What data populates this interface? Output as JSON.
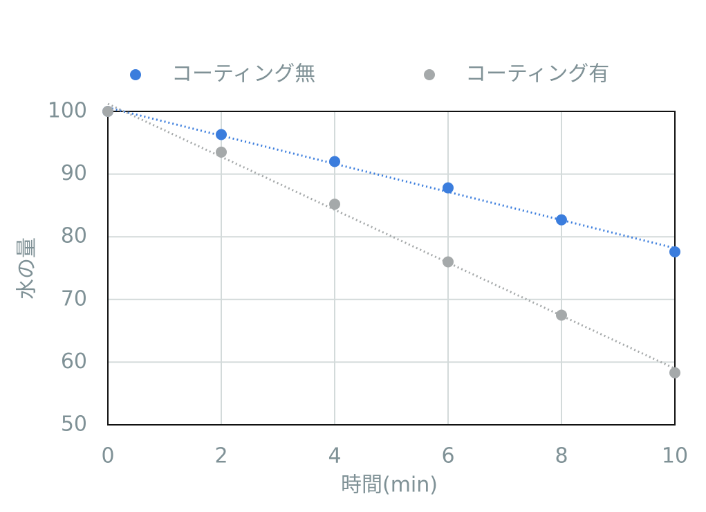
{
  "chart_data": {
    "type": "scatter",
    "x_label": "時間(min)",
    "y_label": "水の量",
    "x": [
      0,
      2,
      4,
      6,
      8,
      10
    ],
    "series": [
      {
        "name": "コーティング無",
        "color": "#3b7ddd",
        "values": [
          100,
          96.3,
          92,
          87.8,
          82.7,
          77.6
        ]
      },
      {
        "name": "コーティング有",
        "color": "#a5a9aa",
        "values": [
          100,
          93.5,
          85.2,
          76,
          67.5,
          58.3
        ]
      }
    ],
    "xlim": [
      0,
      10
    ],
    "xticks": [
      0,
      2,
      4,
      6,
      8,
      10
    ],
    "ylim": [
      50,
      100
    ],
    "yticks": [
      50,
      60,
      70,
      80,
      90,
      100
    ],
    "grid": true,
    "trendline": true,
    "legend": "top"
  }
}
